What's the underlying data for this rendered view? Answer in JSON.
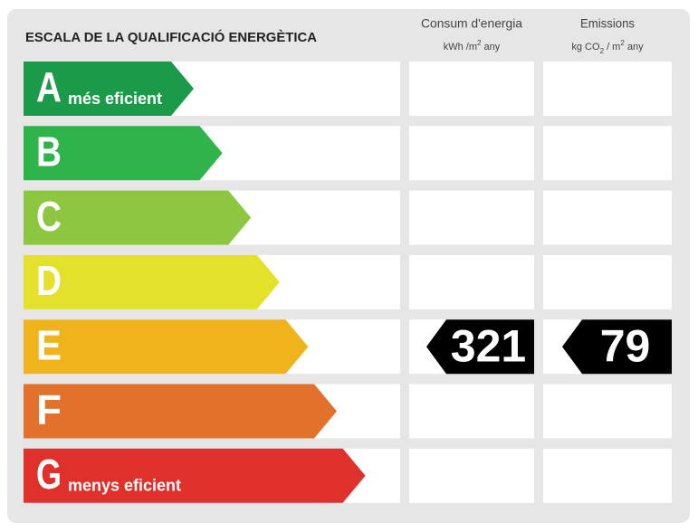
{
  "title": "ESCALA DE LA QUALIFICACIÓ ENERGÈTICA",
  "columns": [
    {
      "title": "Consum d'energia",
      "unit": [
        {
          "text": "kWh /m",
          "style": "normal"
        },
        {
          "text": "2",
          "style": "sup"
        },
        {
          "text": "  any",
          "style": "normal"
        }
      ]
    },
    {
      "title": "Emissions",
      "unit": [
        {
          "text": "kg CO",
          "style": "normal"
        },
        {
          "text": "2",
          "style": "sub"
        },
        {
          "text": " / m",
          "style": "normal"
        },
        {
          "text": "2",
          "style": "sup"
        },
        {
          "text": "  any",
          "style": "normal"
        }
      ]
    }
  ],
  "rows": [
    {
      "letter": "A",
      "color": "#1b9a4a",
      "note": "més eficient"
    },
    {
      "letter": "B",
      "color": "#2fb34b"
    },
    {
      "letter": "C",
      "color": "#8dc640"
    },
    {
      "letter": "D",
      "color": "#e3e12c"
    },
    {
      "letter": "E",
      "color": "#f1b31c",
      "consumption": 321,
      "emissions": 79
    },
    {
      "letter": "F",
      "color": "#e2712b"
    },
    {
      "letter": "G",
      "color": "#e0302b",
      "note": "menys eficient"
    }
  ]
}
